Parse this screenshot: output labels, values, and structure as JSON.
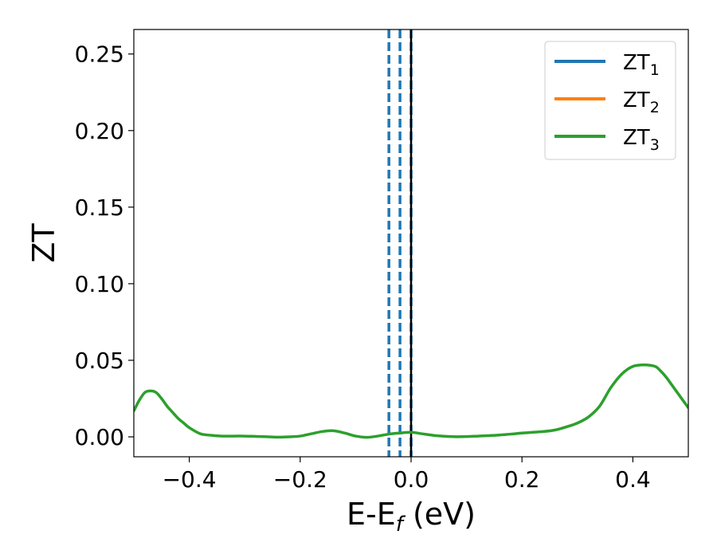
{
  "chart_data": {
    "type": "line",
    "xlabel": {
      "main": "E-E",
      "sub": "f",
      "suffix": " (eV)"
    },
    "ylabel": "ZT",
    "xlim": [
      -0.5,
      0.5
    ],
    "ylim": [
      -0.013,
      0.266
    ],
    "x_ticks": [
      -0.4,
      -0.2,
      0.0,
      0.2,
      0.4
    ],
    "x_tick_labels": [
      "−0.4",
      "−0.2",
      "0.0",
      "0.2",
      "0.4"
    ],
    "y_ticks": [
      0.0,
      0.05,
      0.1,
      0.15,
      0.2,
      0.25
    ],
    "y_tick_labels": [
      "0.00",
      "0.05",
      "0.10",
      "0.15",
      "0.20",
      "0.25"
    ],
    "legend_position": "top-right",
    "colors": {
      "ZT1": "#1f77b4",
      "ZT2": "#ff7f0e",
      "ZT3": "#2ca02c",
      "fermi": "#000000"
    },
    "series": [
      {
        "name": "ZT",
        "sub": "1",
        "color": "#1f77b4",
        "visible_line": false
      },
      {
        "name": "ZT",
        "sub": "2",
        "color": "#ff7f0e",
        "visible_line": false
      },
      {
        "name": "ZT",
        "sub": "3",
        "color": "#2ca02c",
        "visible_line": true,
        "x": [
          -0.5,
          -0.49,
          -0.48,
          -0.47,
          -0.46,
          -0.45,
          -0.44,
          -0.43,
          -0.42,
          -0.41,
          -0.4,
          -0.38,
          -0.36,
          -0.34,
          -0.32,
          -0.3,
          -0.28,
          -0.26,
          -0.24,
          -0.22,
          -0.2,
          -0.18,
          -0.16,
          -0.14,
          -0.12,
          -0.1,
          -0.08,
          -0.06,
          -0.04,
          -0.02,
          0.0,
          0.02,
          0.04,
          0.06,
          0.08,
          0.1,
          0.12,
          0.14,
          0.16,
          0.18,
          0.2,
          0.22,
          0.24,
          0.26,
          0.28,
          0.3,
          0.32,
          0.34,
          0.36,
          0.38,
          0.4,
          0.42,
          0.44,
          0.45,
          0.46,
          0.47,
          0.48,
          0.49,
          0.5
        ],
        "y": [
          0.017,
          0.024,
          0.029,
          0.03,
          0.029,
          0.025,
          0.02,
          0.016,
          0.012,
          0.009,
          0.006,
          0.002,
          0.001,
          0.0005,
          0.0005,
          0.0005,
          0.0003,
          0.0001,
          -0.0002,
          0.0,
          0.0005,
          0.002,
          0.0035,
          0.004,
          0.0025,
          0.0005,
          -0.0003,
          0.0005,
          0.0018,
          0.0025,
          0.003,
          0.002,
          0.001,
          0.0004,
          0.0001,
          0.0002,
          0.0005,
          0.0008,
          0.0012,
          0.0018,
          0.0025,
          0.003,
          0.0035,
          0.0045,
          0.0065,
          0.009,
          0.013,
          0.02,
          0.032,
          0.041,
          0.046,
          0.047,
          0.046,
          0.043,
          0.039,
          0.034,
          0.029,
          0.024,
          0.019
        ]
      }
    ],
    "vertical_lines": [
      {
        "x": -0.04,
        "style": "dashed",
        "color": "#1f77b4"
      },
      {
        "x": -0.02,
        "style": "dashed",
        "color": "#1f77b4"
      },
      {
        "x": 0.0,
        "style": "dashed",
        "color": "#1f77b4"
      },
      {
        "x": 0.0,
        "style": "solid",
        "color": "#000000"
      }
    ]
  }
}
